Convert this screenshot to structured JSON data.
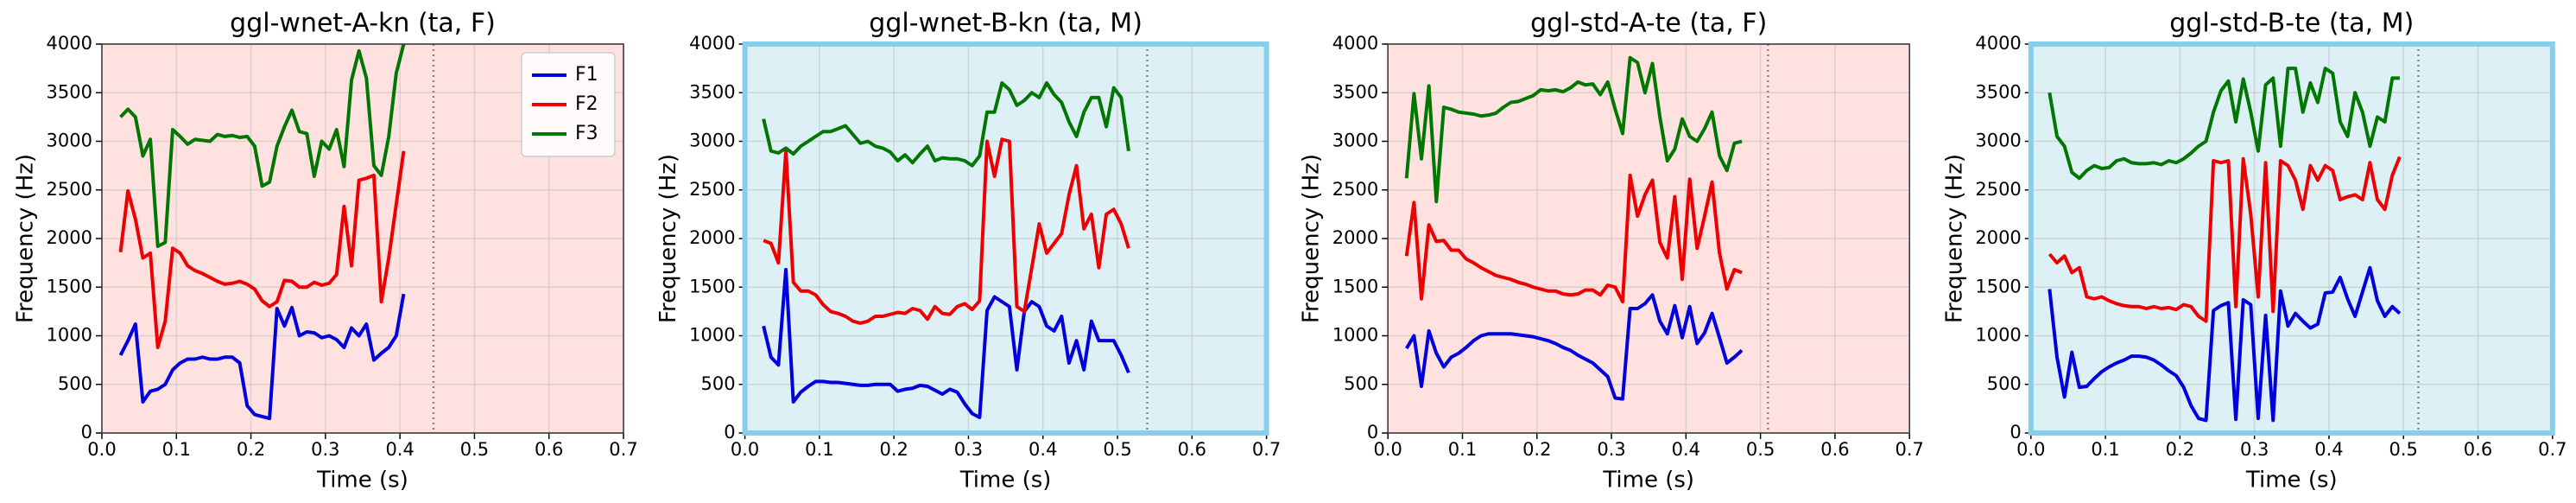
{
  "chart_data": [
    {
      "type": "line",
      "title": "ggl-wnet-A-kn (ta, F)",
      "xlabel": "Time (s)",
      "ylabel": "Frequency (Hz)",
      "background": "#ffe2e0",
      "border_color": "#333333",
      "vline": 0.445,
      "legend": "upper right",
      "grid": true,
      "xlim": [
        0,
        0.7
      ],
      "xticks": [
        {
          "value": 0,
          "label": "0.0"
        },
        0.1,
        0.2,
        0.3,
        0.4,
        0.5,
        0.6,
        0.7
      ],
      "ylim": [
        0,
        4000
      ],
      "yticks": [
        0,
        500,
        1000,
        1500,
        2000,
        2500,
        3000,
        3500,
        4000
      ],
      "x": [
        0.025,
        0.035,
        0.045,
        0.055,
        0.065,
        0.075,
        0.085,
        0.095,
        0.105,
        0.115,
        0.125,
        0.135,
        0.145,
        0.155,
        0.165,
        0.175,
        0.185,
        0.195,
        0.205,
        0.215,
        0.225,
        0.235,
        0.245,
        0.255,
        0.265,
        0.275,
        0.285,
        0.295,
        0.305,
        0.315,
        0.325,
        0.335,
        0.345,
        0.355,
        0.365,
        0.375,
        0.385,
        0.395,
        0.405
      ],
      "series": [
        {
          "name": "F1",
          "color": "#0000dd",
          "values": [
            800,
            950,
            1120,
            320,
            430,
            450,
            500,
            650,
            720,
            760,
            760,
            780,
            760,
            760,
            780,
            780,
            720,
            280,
            190,
            170,
            150,
            1280,
            1100,
            1290,
            1000,
            1040,
            1030,
            980,
            1000,
            960,
            880,
            1080,
            1000,
            1120,
            750,
            820,
            880,
            1000,
            1430
          ]
        },
        {
          "name": "F2",
          "color": "#ee0000",
          "values": [
            1860,
            2490,
            2200,
            1800,
            1850,
            880,
            1150,
            1900,
            1850,
            1720,
            1670,
            1640,
            1600,
            1560,
            1530,
            1540,
            1560,
            1530,
            1480,
            1360,
            1300,
            1350,
            1570,
            1560,
            1500,
            1500,
            1550,
            1520,
            1540,
            1630,
            2330,
            1720,
            2600,
            2620,
            2650,
            1350,
            1800,
            2350,
            2900
          ]
        },
        {
          "name": "F3",
          "color": "#007700",
          "values": [
            3250,
            3330,
            3250,
            2850,
            3020,
            1920,
            1960,
            3120,
            3050,
            2970,
            3020,
            3010,
            3000,
            3070,
            3050,
            3060,
            3040,
            3050,
            2950,
            2540,
            2580,
            2950,
            3150,
            3320,
            3100,
            3080,
            2640,
            3000,
            2920,
            3120,
            2740,
            3630,
            3930,
            3650,
            2750,
            2650,
            3050,
            3700,
            4000
          ]
        }
      ]
    },
    {
      "type": "line",
      "title": "ggl-wnet-B-kn (ta, M)",
      "xlabel": "Time (s)",
      "ylabel": "Frequency (Hz)",
      "background": "#ddf0f6",
      "border_color": "#87ceeb",
      "vline": 0.54,
      "grid": true,
      "xlim": [
        0,
        0.7
      ],
      "xticks": [
        {
          "value": 0,
          "label": "0.0"
        },
        0.1,
        0.2,
        0.3,
        0.4,
        0.5,
        0.6,
        0.7
      ],
      "ylim": [
        0,
        4000
      ],
      "yticks": [
        0,
        500,
        1000,
        1500,
        2000,
        2500,
        3000,
        3500,
        4000
      ],
      "x": [
        0.025,
        0.035,
        0.045,
        0.055,
        0.065,
        0.075,
        0.085,
        0.095,
        0.105,
        0.115,
        0.125,
        0.135,
        0.145,
        0.155,
        0.165,
        0.175,
        0.185,
        0.195,
        0.205,
        0.215,
        0.225,
        0.235,
        0.245,
        0.255,
        0.265,
        0.275,
        0.285,
        0.295,
        0.305,
        0.315,
        0.325,
        0.335,
        0.345,
        0.355,
        0.365,
        0.375,
        0.385,
        0.395,
        0.405,
        0.415,
        0.425,
        0.435,
        0.445,
        0.455,
        0.465,
        0.475,
        0.485,
        0.495,
        0.505,
        0.515
      ],
      "series": [
        {
          "color": "#0000dd",
          "values": [
            1100,
            780,
            700,
            1680,
            320,
            420,
            480,
            530,
            530,
            520,
            520,
            510,
            500,
            490,
            490,
            500,
            500,
            500,
            430,
            450,
            460,
            490,
            480,
            440,
            400,
            450,
            420,
            300,
            200,
            160,
            1260,
            1400,
            1350,
            1300,
            650,
            1250,
            1350,
            1300,
            1100,
            1050,
            1200,
            720,
            950,
            650,
            1150,
            950,
            950,
            950,
            800,
            620
          ]
        },
        {
          "color": "#ee0000",
          "values": [
            1980,
            1950,
            1750,
            2900,
            1550,
            1460,
            1460,
            1420,
            1320,
            1250,
            1230,
            1200,
            1150,
            1130,
            1150,
            1200,
            1200,
            1220,
            1240,
            1230,
            1280,
            1260,
            1170,
            1300,
            1230,
            1220,
            1300,
            1330,
            1270,
            1360,
            3000,
            2640,
            3020,
            3000,
            1300,
            1250,
            1700,
            2150,
            1850,
            1950,
            2050,
            2450,
            2750,
            2100,
            2250,
            1700,
            2250,
            2300,
            2150,
            1900
          ]
        },
        {
          "color": "#007700",
          "values": [
            3230,
            2900,
            2880,
            2930,
            2870,
            2950,
            3000,
            3050,
            3100,
            3100,
            3130,
            3160,
            3070,
            2980,
            3000,
            2950,
            2930,
            2890,
            2800,
            2860,
            2780,
            2870,
            2950,
            2800,
            2830,
            2820,
            2820,
            2800,
            2750,
            2850,
            3300,
            3300,
            3600,
            3530,
            3370,
            3420,
            3500,
            3450,
            3600,
            3480,
            3400,
            3200,
            3050,
            3300,
            3450,
            3450,
            3150,
            3550,
            3450,
            2900
          ]
        }
      ]
    },
    {
      "type": "line",
      "title": "ggl-std-A-te (ta, F)",
      "xlabel": "Time (s)",
      "ylabel": "Frequency (Hz)",
      "background": "#ffe2e0",
      "border_color": "#333333",
      "vline": 0.51,
      "grid": true,
      "xlim": [
        0,
        0.7
      ],
      "xticks": [
        {
          "value": 0,
          "label": "0.0"
        },
        0.1,
        0.2,
        0.3,
        0.4,
        0.5,
        0.6,
        0.7
      ],
      "ylim": [
        0,
        4000
      ],
      "yticks": [
        0,
        500,
        1000,
        1500,
        2000,
        2500,
        3000,
        3500,
        4000
      ],
      "x": [
        0.025,
        0.035,
        0.045,
        0.055,
        0.065,
        0.075,
        0.085,
        0.095,
        0.105,
        0.115,
        0.125,
        0.135,
        0.145,
        0.155,
        0.165,
        0.175,
        0.185,
        0.195,
        0.205,
        0.215,
        0.225,
        0.235,
        0.245,
        0.255,
        0.265,
        0.275,
        0.285,
        0.295,
        0.305,
        0.315,
        0.325,
        0.335,
        0.345,
        0.355,
        0.365,
        0.375,
        0.385,
        0.395,
        0.405,
        0.415,
        0.425,
        0.435,
        0.445,
        0.455,
        0.465,
        0.475
      ],
      "series": [
        {
          "color": "#0000dd",
          "values": [
            870,
            1000,
            480,
            1050,
            820,
            680,
            780,
            820,
            880,
            950,
            1000,
            1020,
            1020,
            1020,
            1020,
            1010,
            1000,
            990,
            970,
            950,
            920,
            880,
            850,
            800,
            760,
            720,
            650,
            580,
            360,
            350,
            1280,
            1280,
            1330,
            1420,
            1150,
            1020,
            1310,
            980,
            1300,
            920,
            1030,
            1230,
            980,
            720,
            780,
            850
          ]
        },
        {
          "color": "#ee0000",
          "values": [
            1820,
            2370,
            1380,
            2140,
            1970,
            1980,
            1880,
            1880,
            1790,
            1750,
            1700,
            1660,
            1620,
            1600,
            1580,
            1550,
            1530,
            1500,
            1480,
            1460,
            1460,
            1430,
            1420,
            1430,
            1470,
            1470,
            1420,
            1520,
            1500,
            1350,
            2650,
            2230,
            2450,
            2600,
            1960,
            1800,
            2430,
            1580,
            2610,
            1900,
            2230,
            2580,
            1850,
            1480,
            1680,
            1650
          ]
        },
        {
          "color": "#007700",
          "values": [
            2620,
            3490,
            2820,
            3570,
            2380,
            3350,
            3330,
            3300,
            3290,
            3280,
            3260,
            3270,
            3290,
            3350,
            3400,
            3410,
            3440,
            3470,
            3530,
            3520,
            3530,
            3510,
            3550,
            3610,
            3580,
            3590,
            3480,
            3610,
            3330,
            3080,
            3860,
            3810,
            3500,
            3800,
            3250,
            2800,
            2920,
            3230,
            3050,
            3000,
            3130,
            3300,
            2850,
            2700,
            2980,
            3000
          ]
        }
      ]
    },
    {
      "type": "line",
      "title": "ggl-std-B-te (ta, M)",
      "xlabel": "Time (s)",
      "ylabel": "Frequency (Hz)",
      "background": "#ddf0f6",
      "border_color": "#87ceeb",
      "vline": 0.52,
      "grid": true,
      "xlim": [
        0,
        0.7
      ],
      "xticks": [
        {
          "value": 0,
          "label": "0.0"
        },
        0.1,
        0.2,
        0.3,
        0.4,
        0.5,
        0.6,
        0.7
      ],
      "ylim": [
        0,
        4000
      ],
      "yticks": [
        0,
        500,
        1000,
        1500,
        2000,
        2500,
        3000,
        3500,
        4000
      ],
      "x": [
        0.025,
        0.035,
        0.045,
        0.055,
        0.065,
        0.075,
        0.085,
        0.095,
        0.105,
        0.115,
        0.125,
        0.135,
        0.145,
        0.155,
        0.165,
        0.175,
        0.185,
        0.195,
        0.205,
        0.215,
        0.225,
        0.235,
        0.245,
        0.255,
        0.265,
        0.275,
        0.285,
        0.295,
        0.305,
        0.315,
        0.325,
        0.335,
        0.345,
        0.355,
        0.365,
        0.375,
        0.385,
        0.395,
        0.405,
        0.415,
        0.425,
        0.435,
        0.445,
        0.455,
        0.465,
        0.475,
        0.485,
        0.495
      ],
      "series": [
        {
          "color": "#0000dd",
          "values": [
            1480,
            780,
            370,
            830,
            470,
            480,
            560,
            630,
            680,
            720,
            750,
            790,
            790,
            780,
            750,
            700,
            640,
            590,
            470,
            280,
            150,
            130,
            1260,
            1310,
            1340,
            140,
            1370,
            1320,
            150,
            1210,
            130,
            1460,
            1100,
            1230,
            1150,
            1080,
            1120,
            1440,
            1450,
            1600,
            1380,
            1200,
            1450,
            1700,
            1360,
            1200,
            1300,
            1230
          ]
        },
        {
          "color": "#ee0000",
          "values": [
            1840,
            1750,
            1820,
            1650,
            1700,
            1400,
            1380,
            1400,
            1360,
            1330,
            1310,
            1300,
            1300,
            1280,
            1300,
            1280,
            1290,
            1270,
            1320,
            1300,
            1200,
            1150,
            2800,
            2780,
            2800,
            1300,
            2820,
            2250,
            1400,
            2780,
            1250,
            2800,
            2750,
            2600,
            2300,
            2750,
            2600,
            2750,
            2700,
            2400,
            2430,
            2450,
            2400,
            2780,
            2400,
            2300,
            2650,
            2840
          ]
        },
        {
          "color": "#007700",
          "values": [
            3500,
            3050,
            2950,
            2680,
            2620,
            2700,
            2750,
            2720,
            2730,
            2800,
            2820,
            2780,
            2770,
            2770,
            2780,
            2760,
            2800,
            2780,
            2820,
            2880,
            2950,
            3000,
            3300,
            3520,
            3620,
            3200,
            3640,
            3300,
            2900,
            3580,
            3650,
            2950,
            3750,
            3750,
            3300,
            3600,
            3400,
            3750,
            3700,
            3200,
            3050,
            3500,
            3300,
            2950,
            3250,
            3200,
            3650,
            3650
          ]
        }
      ]
    }
  ]
}
